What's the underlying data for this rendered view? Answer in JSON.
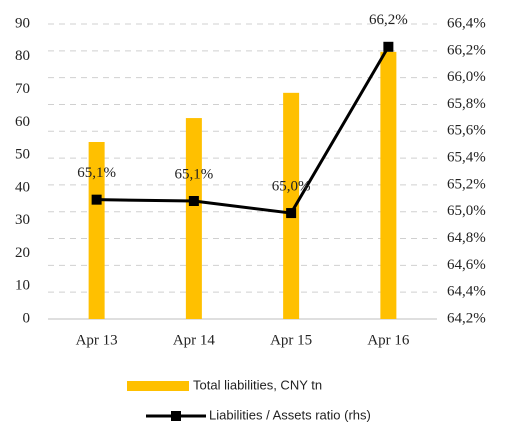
{
  "chart_data": {
    "type": "bar-line",
    "categories": [
      "Apr 13",
      "Apr 14",
      "Apr 15",
      "Apr 16"
    ],
    "series": [
      {
        "name": "Total liabilities, CNY tn",
        "type": "bar",
        "color": "#FFC000",
        "values": [
          54,
          61.3,
          69,
          81.5
        ]
      },
      {
        "name": "Liabilities / Assets ratio (rhs)",
        "type": "line",
        "axis": "y2",
        "color": "#000000",
        "values": [
          65.09,
          65.08,
          64.99,
          66.23
        ],
        "value_labels": [
          "65,1%",
          "65,1%",
          "65,0%",
          "66,2%"
        ]
      }
    ],
    "ylim": [
      0,
      90
    ],
    "yticks": [
      0,
      10,
      20,
      30,
      40,
      50,
      60,
      70,
      80,
      90
    ],
    "y2lim": [
      64.2,
      66.4
    ],
    "y2ticks": [
      {
        "value": 64.2,
        "label": "64,2%"
      },
      {
        "value": 64.4,
        "label": "64,4%"
      },
      {
        "value": 64.6,
        "label": "64,6%"
      },
      {
        "value": 64.8,
        "label": "64,8%"
      },
      {
        "value": 65.0,
        "label": "65,0%"
      },
      {
        "value": 65.2,
        "label": "65,2%"
      },
      {
        "value": 65.4,
        "label": "65,4%"
      },
      {
        "value": 65.6,
        "label": "65,6%"
      },
      {
        "value": 65.8,
        "label": "65,8%"
      },
      {
        "value": 66.0,
        "label": "66,0%"
      },
      {
        "value": 66.2,
        "label": "66,2%"
      },
      {
        "value": 66.4,
        "label": "66,4%"
      }
    ],
    "grid": true
  }
}
